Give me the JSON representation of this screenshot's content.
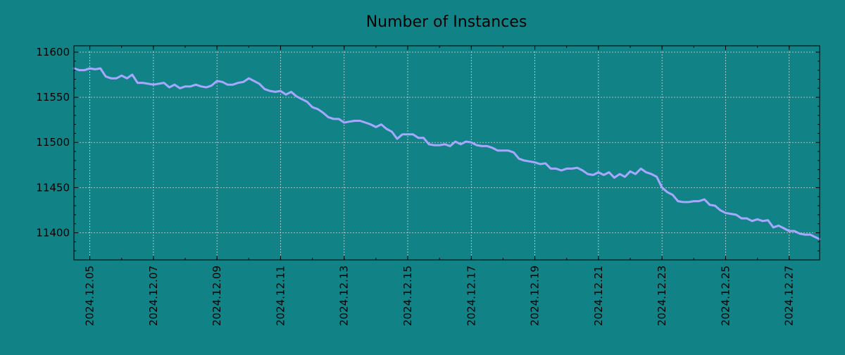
{
  "colors": {
    "background": "#118387",
    "line": "#A6A8FF",
    "grid": "#C8D8D8",
    "axis": "#000000"
  },
  "chart_data": {
    "type": "line",
    "title": "Number of Instances",
    "xlabel": "",
    "ylabel": "",
    "x_type": "date",
    "xlim": [
      "2024-12-04 12:00",
      "2024-12-27 23:00"
    ],
    "ylim": [
      11370,
      11607
    ],
    "x_ticks": [
      "2024.12.05",
      "2024.12.07",
      "2024.12.09",
      "2024.12.11",
      "2024.12.13",
      "2024.12.15",
      "2024.12.17",
      "2024.12.19",
      "2024.12.21",
      "2024.12.23",
      "2024.12.25",
      "2024.12.27"
    ],
    "y_ticks": [
      "11400",
      "11450",
      "11500",
      "11550",
      "11600"
    ],
    "grid": true,
    "series": [
      {
        "points": [
          [
            "2024-12-04 12:00",
            11582
          ],
          [
            "2024-12-04 16:00",
            11580
          ],
          [
            "2024-12-04 20:00",
            11580
          ],
          [
            "2024-12-05 00:00",
            11582
          ],
          [
            "2024-12-05 04:00",
            11581
          ],
          [
            "2024-12-05 08:00",
            11582
          ],
          [
            "2024-12-05 12:00",
            11573
          ],
          [
            "2024-12-05 16:00",
            11571
          ],
          [
            "2024-12-05 20:00",
            11571
          ],
          [
            "2024-12-06 00:00",
            11574
          ],
          [
            "2024-12-06 04:00",
            11571
          ],
          [
            "2024-12-06 08:00",
            11575
          ],
          [
            "2024-12-06 12:00",
            11566
          ],
          [
            "2024-12-06 16:00",
            11566
          ],
          [
            "2024-12-06 20:00",
            11565
          ],
          [
            "2024-12-07 00:00",
            11564
          ],
          [
            "2024-12-07 04:00",
            11565
          ],
          [
            "2024-12-07 08:00",
            11566
          ],
          [
            "2024-12-07 12:00",
            11561
          ],
          [
            "2024-12-07 16:00",
            11564
          ],
          [
            "2024-12-07 20:00",
            11560
          ],
          [
            "2024-12-08 00:00",
            11562
          ],
          [
            "2024-12-08 04:00",
            11562
          ],
          [
            "2024-12-08 08:00",
            11564
          ],
          [
            "2024-12-08 12:00",
            11562
          ],
          [
            "2024-12-08 16:00",
            11561
          ],
          [
            "2024-12-08 20:00",
            11563
          ],
          [
            "2024-12-09 00:00",
            11568
          ],
          [
            "2024-12-09 04:00",
            11567
          ],
          [
            "2024-12-09 08:00",
            11564
          ],
          [
            "2024-12-09 12:00",
            11564
          ],
          [
            "2024-12-09 16:00",
            11566
          ],
          [
            "2024-12-09 20:00",
            11567
          ],
          [
            "2024-12-10 00:00",
            11571
          ],
          [
            "2024-12-10 04:00",
            11568
          ],
          [
            "2024-12-10 08:00",
            11565
          ],
          [
            "2024-12-10 12:00",
            11559
          ],
          [
            "2024-12-10 16:00",
            11557
          ],
          [
            "2024-12-10 20:00",
            11556
          ],
          [
            "2024-12-11 00:00",
            11557
          ],
          [
            "2024-12-11 04:00",
            11553
          ],
          [
            "2024-12-11 08:00",
            11556
          ],
          [
            "2024-12-11 12:00",
            11551
          ],
          [
            "2024-12-11 16:00",
            11548
          ],
          [
            "2024-12-11 20:00",
            11545
          ],
          [
            "2024-12-12 00:00",
            11539
          ],
          [
            "2024-12-12 04:00",
            11537
          ],
          [
            "2024-12-12 08:00",
            11533
          ],
          [
            "2024-12-12 12:00",
            11528
          ],
          [
            "2024-12-12 16:00",
            11526
          ],
          [
            "2024-12-12 20:00",
            11526
          ],
          [
            "2024-12-13 00:00",
            11522
          ],
          [
            "2024-12-13 04:00",
            11523
          ],
          [
            "2024-12-13 08:00",
            11524
          ],
          [
            "2024-12-13 12:00",
            11524
          ],
          [
            "2024-12-13 16:00",
            11522
          ],
          [
            "2024-12-13 20:00",
            11520
          ],
          [
            "2024-12-14 00:00",
            11517
          ],
          [
            "2024-12-14 04:00",
            11520
          ],
          [
            "2024-12-14 08:00",
            11515
          ],
          [
            "2024-12-14 12:00",
            11512
          ],
          [
            "2024-12-14 16:00",
            11504
          ],
          [
            "2024-12-14 20:00",
            11509
          ],
          [
            "2024-12-15 00:00",
            11509
          ],
          [
            "2024-12-15 04:00",
            11509
          ],
          [
            "2024-12-15 08:00",
            11505
          ],
          [
            "2024-12-15 12:00",
            11505
          ],
          [
            "2024-12-15 16:00",
            11498
          ],
          [
            "2024-12-15 20:00",
            11497
          ],
          [
            "2024-12-16 00:00",
            11497
          ],
          [
            "2024-12-16 04:00",
            11498
          ],
          [
            "2024-12-16 08:00",
            11496
          ],
          [
            "2024-12-16 12:00",
            11501
          ],
          [
            "2024-12-16 16:00",
            11498
          ],
          [
            "2024-12-16 20:00",
            11501
          ],
          [
            "2024-12-17 00:00",
            11500
          ],
          [
            "2024-12-17 04:00",
            11497
          ],
          [
            "2024-12-17 08:00",
            11496
          ],
          [
            "2024-12-17 12:00",
            11496
          ],
          [
            "2024-12-17 16:00",
            11494
          ],
          [
            "2024-12-17 20:00",
            11491
          ],
          [
            "2024-12-18 00:00",
            11491
          ],
          [
            "2024-12-18 04:00",
            11491
          ],
          [
            "2024-12-18 08:00",
            11489
          ],
          [
            "2024-12-18 12:00",
            11482
          ],
          [
            "2024-12-18 16:00",
            11480
          ],
          [
            "2024-12-18 20:00",
            11479
          ],
          [
            "2024-12-19 00:00",
            11478
          ],
          [
            "2024-12-19 04:00",
            11476
          ],
          [
            "2024-12-19 08:00",
            11477
          ],
          [
            "2024-12-19 12:00",
            11471
          ],
          [
            "2024-12-19 16:00",
            11471
          ],
          [
            "2024-12-19 20:00",
            11469
          ],
          [
            "2024-12-20 00:00",
            11471
          ],
          [
            "2024-12-20 04:00",
            11471
          ],
          [
            "2024-12-20 08:00",
            11472
          ],
          [
            "2024-12-20 12:00",
            11469
          ],
          [
            "2024-12-20 16:00",
            11465
          ],
          [
            "2024-12-20 20:00",
            11464
          ],
          [
            "2024-12-21 00:00",
            11467
          ],
          [
            "2024-12-21 04:00",
            11464
          ],
          [
            "2024-12-21 08:00",
            11467
          ],
          [
            "2024-12-21 12:00",
            11461
          ],
          [
            "2024-12-21 16:00",
            11465
          ],
          [
            "2024-12-21 20:00",
            11462
          ],
          [
            "2024-12-22 00:00",
            11468
          ],
          [
            "2024-12-22 04:00",
            11465
          ],
          [
            "2024-12-22 08:00",
            11471
          ],
          [
            "2024-12-22 12:00",
            11467
          ],
          [
            "2024-12-22 16:00",
            11465
          ],
          [
            "2024-12-22 20:00",
            11462
          ],
          [
            "2024-12-23 00:00",
            11450
          ],
          [
            "2024-12-23 04:00",
            11445
          ],
          [
            "2024-12-23 08:00",
            11442
          ],
          [
            "2024-12-23 12:00",
            11435
          ],
          [
            "2024-12-23 16:00",
            11434
          ],
          [
            "2024-12-23 20:00",
            11434
          ],
          [
            "2024-12-24 00:00",
            11435
          ],
          [
            "2024-12-24 04:00",
            11435
          ],
          [
            "2024-12-24 08:00",
            11437
          ],
          [
            "2024-12-24 12:00",
            11431
          ],
          [
            "2024-12-24 16:00",
            11430
          ],
          [
            "2024-12-24 20:00",
            11425
          ],
          [
            "2024-12-25 00:00",
            11422
          ],
          [
            "2024-12-25 04:00",
            11421
          ],
          [
            "2024-12-25 08:00",
            11420
          ],
          [
            "2024-12-25 12:00",
            11416
          ],
          [
            "2024-12-25 16:00",
            11416
          ],
          [
            "2024-12-25 20:00",
            11413
          ],
          [
            "2024-12-26 00:00",
            11415
          ],
          [
            "2024-12-26 04:00",
            11413
          ],
          [
            "2024-12-26 08:00",
            11414
          ],
          [
            "2024-12-26 12:00",
            11406
          ],
          [
            "2024-12-26 16:00",
            11408
          ],
          [
            "2024-12-26 20:00",
            11405
          ],
          [
            "2024-12-27 00:00",
            11402
          ],
          [
            "2024-12-27 04:00",
            11402
          ],
          [
            "2024-12-27 08:00",
            11399
          ],
          [
            "2024-12-27 12:00",
            11398
          ],
          [
            "2024-12-27 16:00",
            11398
          ],
          [
            "2024-12-27 20:00",
            11395
          ],
          [
            "2024-12-27 23:00",
            11393
          ]
        ]
      }
    ]
  }
}
